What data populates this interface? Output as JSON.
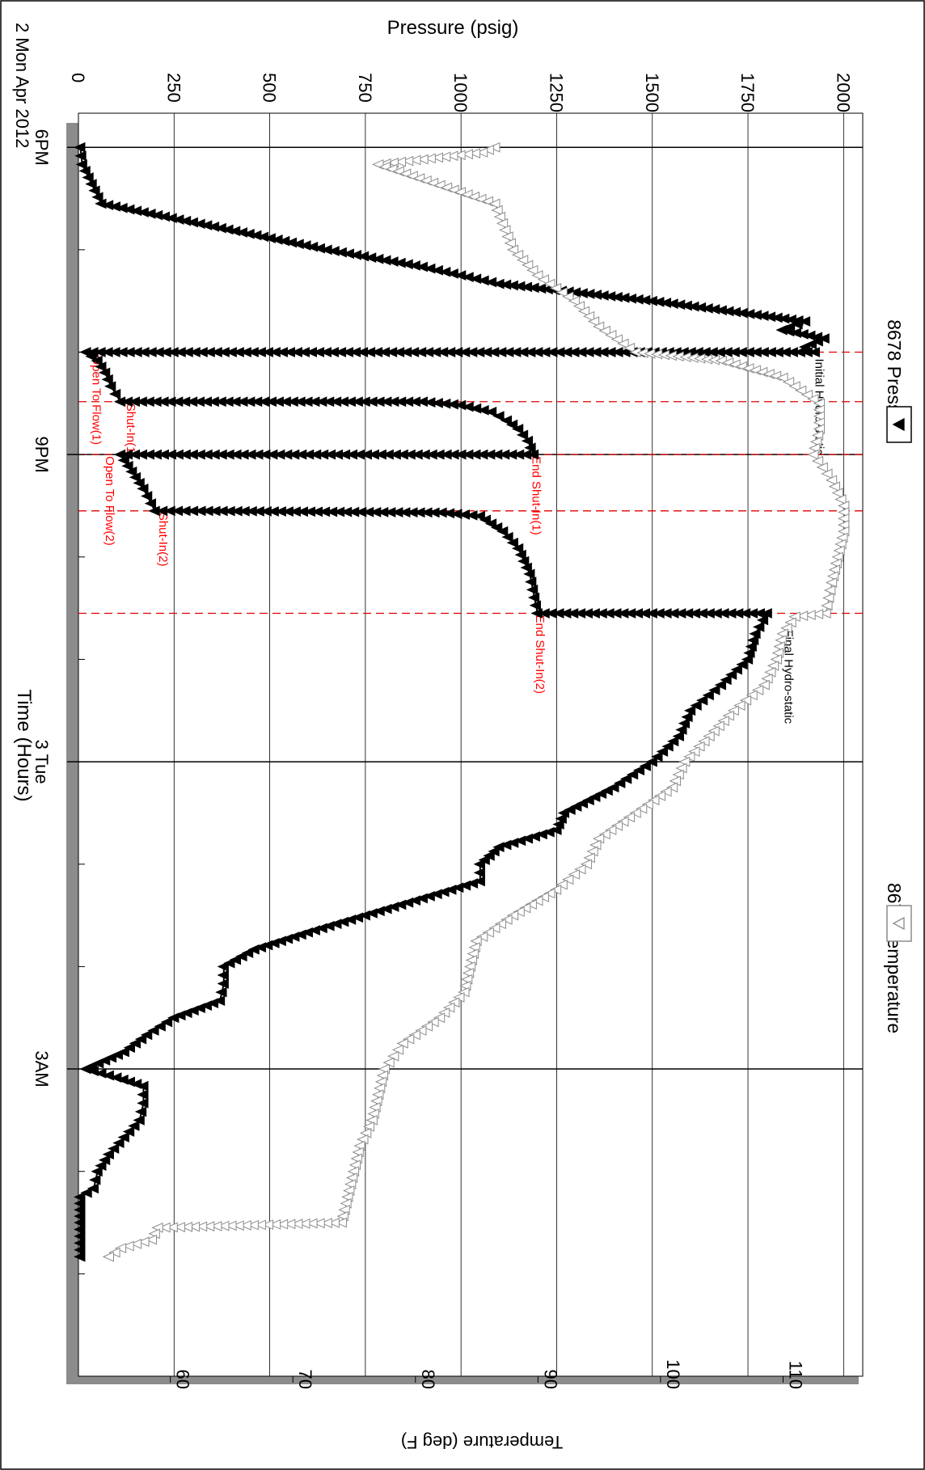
{
  "chart_data": {
    "type": "line",
    "title": "",
    "date_label": "2 Mon Apr 2012",
    "x": {
      "label": "Time (Hours)",
      "range": [
        "2012-04-02 17:40",
        "2012-04-03 06:00"
      ],
      "major_ticks": [
        {
          "time": "2012-04-02 18:00",
          "label": "6PM"
        },
        {
          "time": "2012-04-02 21:00",
          "label": "9PM"
        },
        {
          "time": "2012-04-03 00:00",
          "label": "3 Tue"
        },
        {
          "time": "2012-04-03 03:00",
          "label": "3AM"
        }
      ],
      "minor_tick_interval_hours": 1
    },
    "y_pressure": {
      "label": "Pressure (psig)",
      "range": [
        0,
        2050
      ],
      "ticks": [
        0,
        250,
        500,
        750,
        1000,
        1250,
        1500,
        1750,
        2000
      ]
    },
    "y_temperature": {
      "label": "Temperature (deg F)",
      "range": [
        52.5,
        116.5
      ],
      "ticks": [
        60,
        70,
        80,
        90,
        100,
        110
      ]
    },
    "grid": true,
    "legend": [
      {
        "name": "8678 Pressure",
        "marker": "filled-triangle",
        "color": "#000000"
      },
      {
        "name": "8678 Temperature",
        "marker": "hollow-triangle",
        "color": "#8c8c8c"
      }
    ],
    "events": [
      {
        "label": "Initial Hydro-static",
        "time": "2012-04-02 20:00",
        "color": "#000000"
      },
      {
        "label": "Open To Flow(1)",
        "time": "2012-04-02 20:00",
        "color": "#ff0000"
      },
      {
        "label": "Shut-In(1)",
        "time": "2012-04-02 20:29",
        "color": "#ff0000"
      },
      {
        "label": "End Shut-In(1)",
        "time": "2012-04-02 21:00",
        "color": "#ff0000"
      },
      {
        "label": "Open To Flow(2)",
        "time": "2012-04-02 21:00",
        "color": "#ff0000"
      },
      {
        "label": "Shut-In(2)",
        "time": "2012-04-02 21:33",
        "color": "#ff0000"
      },
      {
        "label": "End Shut-In(2)",
        "time": "2012-04-02 22:33",
        "color": "#ff0000"
      },
      {
        "label": "Final Hydro-static",
        "time": "2012-04-02 22:33",
        "color": "#000000"
      }
    ],
    "series": [
      {
        "name": "8678 Pressure",
        "axis": "pressure",
        "unit": "psig",
        "points": [
          [
            "2012-04-02 18:00",
            5
          ],
          [
            "2012-04-02 18:10",
            10
          ],
          [
            "2012-04-02 18:33",
            60
          ],
          [
            "2012-04-02 19:00",
            650
          ],
          [
            "2012-04-02 19:10",
            900
          ],
          [
            "2012-04-02 19:15",
            1000
          ],
          [
            "2012-04-02 19:20",
            1100
          ],
          [
            "2012-04-02 19:25",
            1300
          ],
          [
            "2012-04-02 19:30",
            1500
          ],
          [
            "2012-04-02 19:36",
            1700
          ],
          [
            "2012-04-02 19:42",
            1900
          ],
          [
            "2012-04-02 19:47",
            1840
          ],
          [
            "2012-04-02 19:52",
            1950
          ],
          [
            "2012-04-02 19:57",
            1900
          ],
          [
            "2012-04-02 20:00",
            1925
          ],
          [
            "2012-04-02 20:00",
            20
          ],
          [
            "2012-04-02 20:05",
            50
          ],
          [
            "2012-04-02 20:12",
            70
          ],
          [
            "2012-04-02 20:20",
            85
          ],
          [
            "2012-04-02 20:29",
            110
          ],
          [
            "2012-04-02 20:29",
            900
          ],
          [
            "2012-04-02 20:31",
            1000
          ],
          [
            "2012-04-02 20:35",
            1080
          ],
          [
            "2012-04-02 20:40",
            1120
          ],
          [
            "2012-04-02 20:45",
            1150
          ],
          [
            "2012-04-02 20:52",
            1175
          ],
          [
            "2012-04-02 21:00",
            1190
          ],
          [
            "2012-04-02 21:00",
            110
          ],
          [
            "2012-04-02 21:10",
            140
          ],
          [
            "2012-04-02 21:20",
            170
          ],
          [
            "2012-04-02 21:33",
            200
          ],
          [
            "2012-04-02 21:33",
            320
          ],
          [
            "2012-04-02 21:34",
            950
          ],
          [
            "2012-04-02 21:36",
            1050
          ],
          [
            "2012-04-02 21:45",
            1110
          ],
          [
            "2012-04-02 21:55",
            1150
          ],
          [
            "2012-04-02 22:10",
            1180
          ],
          [
            "2012-04-02 22:33",
            1200
          ],
          [
            "2012-04-02 22:33",
            1800
          ],
          [
            "2012-04-02 22:45",
            1770
          ],
          [
            "2012-04-02 23:00",
            1750
          ],
          [
            "2012-04-02 23:15",
            1680
          ],
          [
            "2012-04-02 23:30",
            1600
          ],
          [
            "2012-04-02 23:45",
            1570
          ],
          [
            "2012-04-03 00:00",
            1500
          ],
          [
            "2012-04-03 00:15",
            1400
          ],
          [
            "2012-04-03 00:30",
            1270
          ],
          [
            "2012-04-03 00:40",
            1250
          ],
          [
            "2012-04-03 00:50",
            1100
          ],
          [
            "2012-04-03 01:00",
            1050
          ],
          [
            "2012-04-03 01:10",
            1050
          ],
          [
            "2012-04-03 01:20",
            900
          ],
          [
            "2012-04-03 01:30",
            750
          ],
          [
            "2012-04-03 01:40",
            600
          ],
          [
            "2012-04-03 01:50",
            460
          ],
          [
            "2012-04-03 02:00",
            380
          ],
          [
            "2012-04-03 02:10",
            380
          ],
          [
            "2012-04-03 02:20",
            370
          ],
          [
            "2012-04-03 02:30",
            250
          ],
          [
            "2012-04-03 02:40",
            180
          ],
          [
            "2012-04-03 02:50",
            120
          ],
          [
            "2012-04-03 03:00",
            20
          ],
          [
            "2012-04-03 03:05",
            100
          ],
          [
            "2012-04-03 03:10",
            170
          ],
          [
            "2012-04-03 03:20",
            170
          ],
          [
            "2012-04-03 03:30",
            160
          ],
          [
            "2012-04-03 03:40",
            120
          ],
          [
            "2012-04-03 03:50",
            80
          ],
          [
            "2012-04-03 04:00",
            50
          ],
          [
            "2012-04-03 04:10",
            40
          ],
          [
            "2012-04-03 04:15",
            5
          ],
          [
            "2012-04-03 04:30",
            5
          ],
          [
            "2012-04-03 04:50",
            5
          ]
        ]
      },
      {
        "name": "8678 Temperature",
        "axis": "temperature",
        "unit": "deg F",
        "points": [
          [
            "2012-04-02 18:00",
            86.5
          ],
          [
            "2012-04-02 18:03",
            85.5
          ],
          [
            "2012-04-02 18:10",
            77.0
          ],
          [
            "2012-04-02 18:33",
            86.5
          ],
          [
            "2012-04-02 19:00",
            88.0
          ],
          [
            "2012-04-02 19:15",
            90.0
          ],
          [
            "2012-04-02 19:30",
            93.0
          ],
          [
            "2012-04-02 19:45",
            95.0
          ],
          [
            "2012-04-02 20:00",
            98.0
          ],
          [
            "2012-04-02 20:05",
            105.0
          ],
          [
            "2012-04-02 20:15",
            110.0
          ],
          [
            "2012-04-02 20:30",
            113.0
          ],
          [
            "2012-04-02 20:45",
            113.0
          ],
          [
            "2012-04-02 21:00",
            112.5
          ],
          [
            "2012-04-02 21:15",
            114.0
          ],
          [
            "2012-04-02 21:30",
            115.0
          ],
          [
            "2012-04-02 21:45",
            115.0
          ],
          [
            "2012-04-02 22:00",
            114.5
          ],
          [
            "2012-04-02 22:15",
            114.0
          ],
          [
            "2012-04-02 22:33",
            113.5
          ],
          [
            "2012-04-02 22:35",
            111.0
          ],
          [
            "2012-04-02 22:45",
            110.0
          ],
          [
            "2012-04-02 23:00",
            109.5
          ],
          [
            "2012-04-02 23:15",
            108.5
          ],
          [
            "2012-04-02 23:30",
            106.0
          ],
          [
            "2012-04-02 23:45",
            104.0
          ],
          [
            "2012-04-03 00:00",
            102.0
          ],
          [
            "2012-04-03 00:15",
            101.0
          ],
          [
            "2012-04-03 00:30",
            98.0
          ],
          [
            "2012-04-03 00:45",
            95.0
          ],
          [
            "2012-04-03 01:00",
            94.0
          ],
          [
            "2012-04-03 01:15",
            91.5
          ],
          [
            "2012-04-03 01:30",
            88.0
          ],
          [
            "2012-04-03 01:45",
            85.0
          ],
          [
            "2012-04-03 02:00",
            84.5
          ],
          [
            "2012-04-03 02:15",
            84.0
          ],
          [
            "2012-04-03 02:30",
            82.0
          ],
          [
            "2012-04-03 02:45",
            79.0
          ],
          [
            "2012-04-03 03:00",
            77.5
          ],
          [
            "2012-04-03 03:15",
            77.0
          ],
          [
            "2012-04-03 03:30",
            76.5
          ],
          [
            "2012-04-03 03:45",
            75.5
          ],
          [
            "2012-04-03 04:00",
            75.0
          ],
          [
            "2012-04-03 04:15",
            74.5
          ],
          [
            "2012-04-03 04:30",
            74.0
          ],
          [
            "2012-04-03 04:33",
            59.0
          ],
          [
            "2012-04-03 04:40",
            58.5
          ],
          [
            "2012-04-03 04:45",
            56.0
          ],
          [
            "2012-04-03 04:50",
            55.0
          ]
        ]
      }
    ]
  }
}
